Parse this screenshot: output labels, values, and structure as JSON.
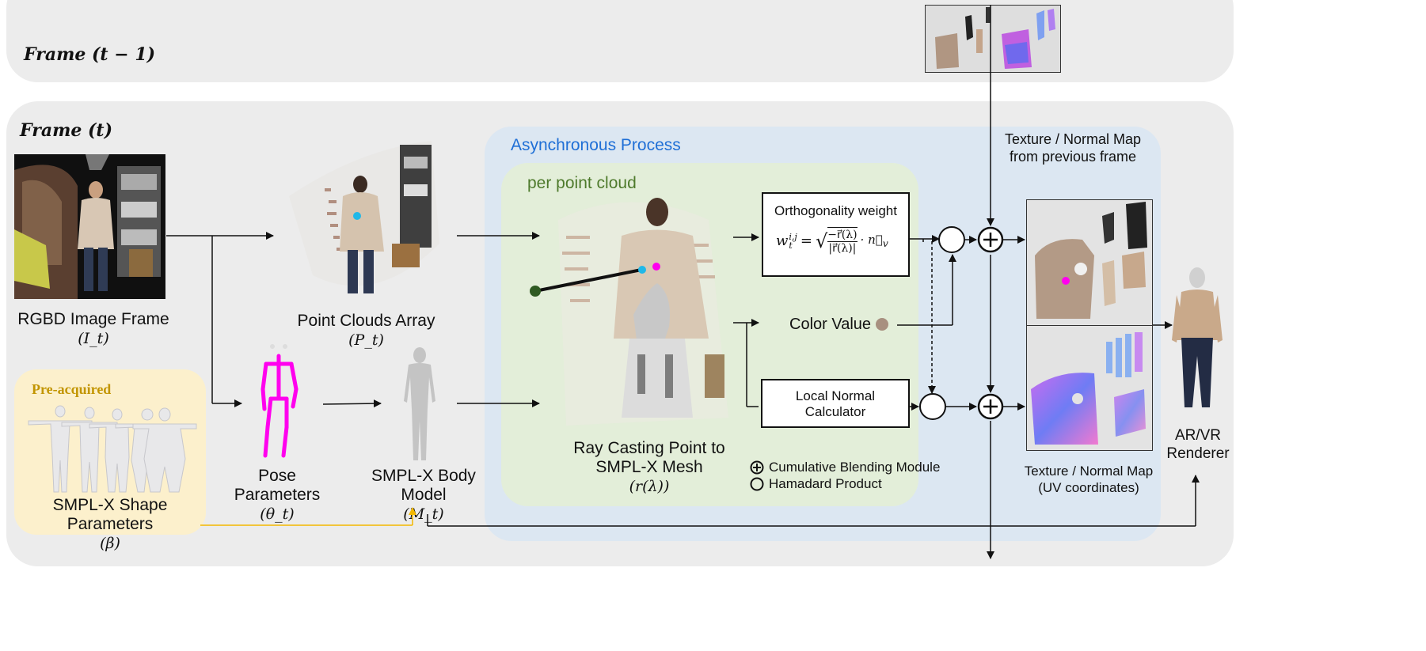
{
  "frames": {
    "prev_label": "Frame (t − 1)",
    "curr_label": "Frame (t)"
  },
  "async": {
    "title": "Asynchronous Process",
    "per_point": "per point cloud"
  },
  "inputs": {
    "rgbd_label": "RGBD Image Frame",
    "rgbd_symbol": "(I_t)",
    "point_clouds_label": "Point Clouds Array",
    "point_clouds_symbol": "(P_t)",
    "pose_label": "Pose Parameters",
    "pose_symbol": "(θ_t)",
    "body_label": "SMPL-X Body Model",
    "body_symbol": "(M_t)",
    "preacquired_title": "Pre-acquired",
    "shape_label": "SMPL-X Shape Parameters",
    "shape_symbol": "(β)"
  },
  "raycast": {
    "label_line1": "Ray Casting Point to",
    "label_line2": "SMPL-X Mesh",
    "symbol": "(r(λ))"
  },
  "modules": {
    "orthogonality_title": "Orthogonality weight",
    "orthogonality_formula_lhs": "w",
    "orthogonality_formula_sup": "i,j",
    "orthogonality_formula_sub": "t",
    "orthogonality_num": "−r⃗(λ)",
    "orthogonality_den": "|r⃗(λ)|",
    "orthogonality_tail": "· n⃗",
    "orthogonality_tail_sub": "v",
    "color_value": "Color Value",
    "local_normal_line1": "Local Normal",
    "local_normal_line2": "Calculator"
  },
  "legend": {
    "blending": "Cumulative Blending Module",
    "hadamard": "Hamadard Product"
  },
  "texture": {
    "prev_line1": "Texture / Normal Map",
    "prev_line2": "from previous frame",
    "out_line1": "Texture / Normal Map",
    "out_line2": "(UV coordinates)"
  },
  "renderer": {
    "line1": "AR/VR",
    "line2": "Renderer"
  },
  "colors": {
    "frame_bg": "#ececec",
    "async_bg": "#dce7f2",
    "percloud_bg": "#e3eed9",
    "preacquired_bg": "#fcf0cc",
    "async_title": "#1f6fd6",
    "percloud_title": "#4e7a2c",
    "preacquired_title": "#c29500",
    "magenta": "#ff00ee",
    "cyan": "#20b8e8",
    "dark_green": "#2f5a22",
    "yellow_arrow": "#f3b800",
    "color_swatch": "#a89080"
  },
  "icons": [
    "plus-circle-icon",
    "hadamard-circle-icon",
    "arrow-icon"
  ]
}
